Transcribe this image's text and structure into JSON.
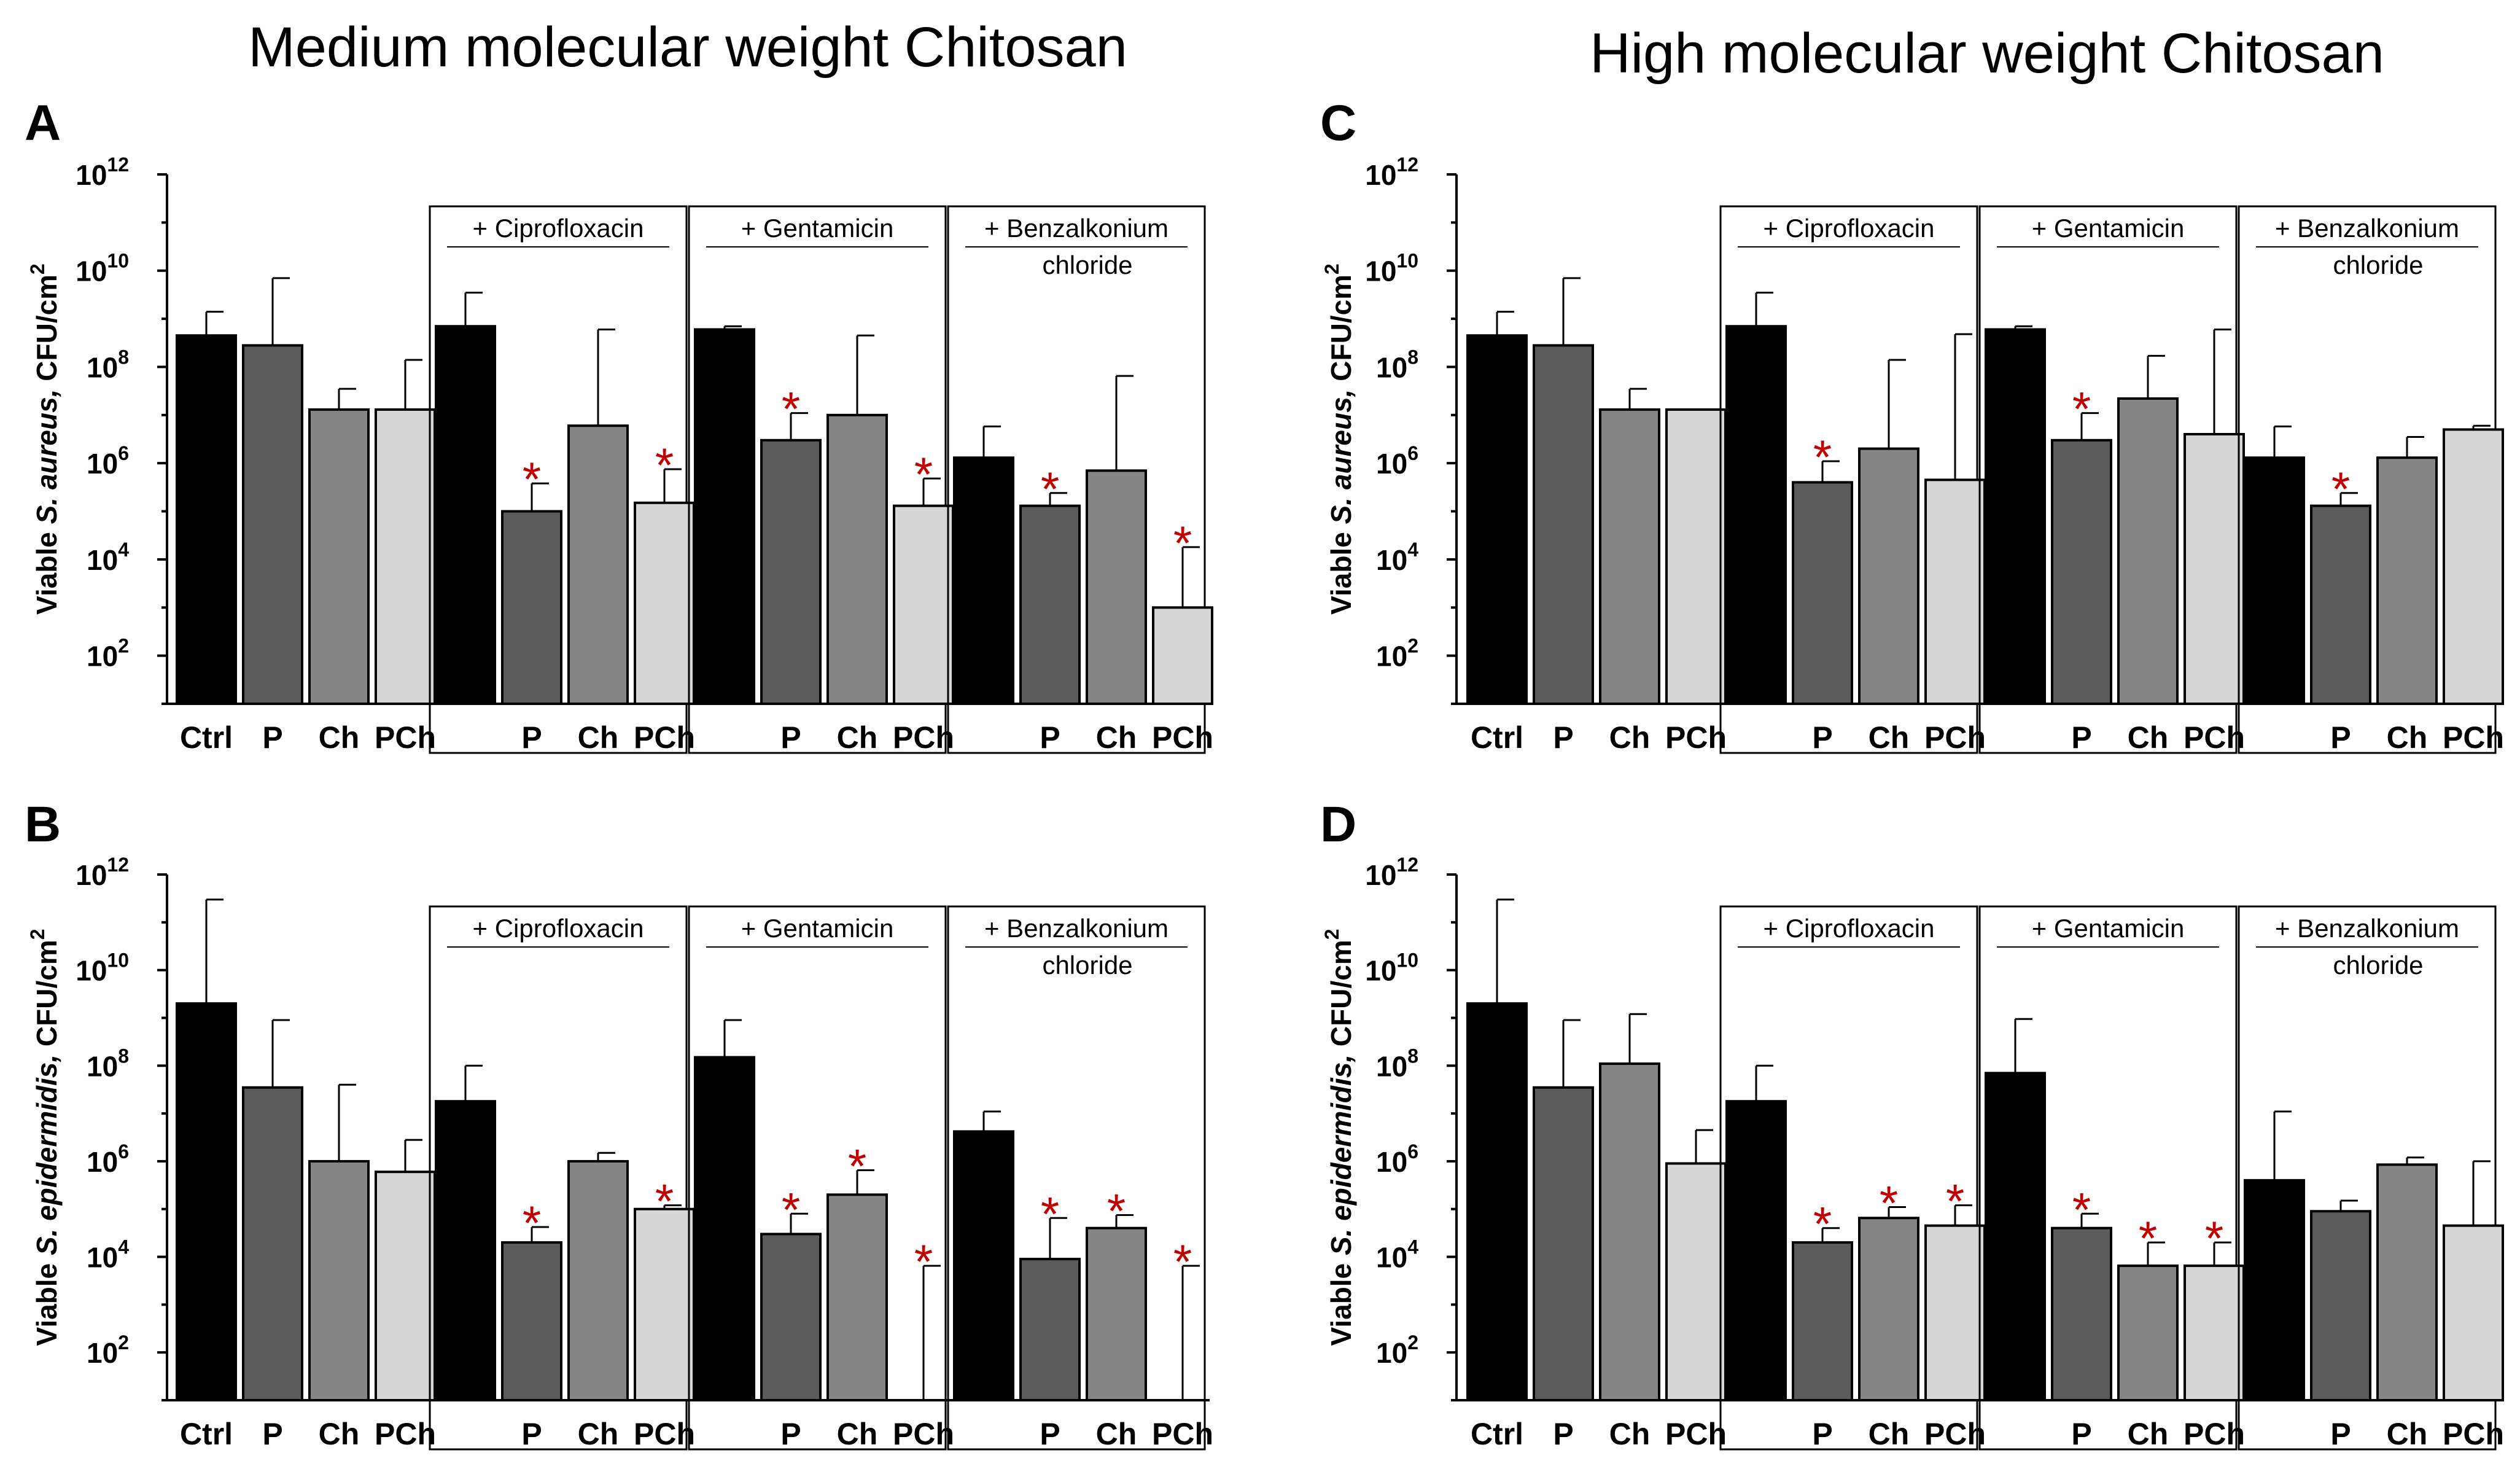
{
  "figure": {
    "left_title": "Medium molecular weight Chitosan",
    "right_title": "High molecular weight Chitosan"
  },
  "colors": {
    "Ctrl": "#000000",
    "P": "#5b5b5b",
    "Ch": "#858585",
    "PCh": "#d6d6d6",
    "significance": "#c00000"
  },
  "chart_data": [
    {
      "id": "A",
      "type": "bar",
      "scale": "log10",
      "ylim_exp": [
        1,
        12
      ],
      "ytick_exponents": [
        2,
        4,
        6,
        8,
        10,
        12
      ],
      "ylabel_pre": "Viable ",
      "ylabel_species": "S. aureus,",
      "ylabel_post": " CFU/cm",
      "ylabel_sup": "2",
      "groups": [
        {
          "label": "",
          "categories": [
            "Ctrl",
            "P",
            "Ch",
            "PCh"
          ],
          "values": [
            450000000.0,
            280000000.0,
            13000000.0,
            13000000.0
          ],
          "errors": [
            1400000000.0,
            7000000000.0,
            35000000.0,
            140000000.0
          ],
          "significant": [
            false,
            false,
            false,
            false
          ]
        },
        {
          "label": "+ Ciprofloxacin",
          "categories": [
            "",
            "P",
            "Ch",
            "PCh"
          ],
          "values": [
            700000000.0,
            100000.0,
            6000000.0,
            150000.0
          ],
          "errors": [
            3500000000.0,
            380000.0,
            600000000.0,
            750000.0
          ],
          "significant": [
            false,
            true,
            false,
            true
          ]
        },
        {
          "label": "+ Gentamicin",
          "categories": [
            "",
            "P",
            "Ch",
            "PCh"
          ],
          "values": [
            600000000.0,
            3000000.0,
            10000000.0,
            130000.0
          ],
          "errors": [
            700000000.0,
            11000000.0,
            450000000.0,
            480000.0
          ],
          "significant": [
            false,
            true,
            false,
            true
          ]
        },
        {
          "label": "+ Benzalkonium",
          "label2": "chloride",
          "categories": [
            "",
            "P",
            "Ch",
            "PCh"
          ],
          "values": [
            1300000.0,
            130000.0,
            700000.0,
            1000.0
          ],
          "errors": [
            5800000.0,
            240000.0,
            65000000.0,
            18000.0
          ],
          "significant": [
            false,
            true,
            false,
            true
          ]
        }
      ]
    },
    {
      "id": "B",
      "type": "bar",
      "scale": "log10",
      "ylim_exp": [
        1,
        12
      ],
      "ytick_exponents": [
        2,
        4,
        6,
        8,
        10,
        12
      ],
      "ylabel_pre": "Viable ",
      "ylabel_species": "S. epidermidis,",
      "ylabel_post": " CFU/cm",
      "ylabel_sup": "2",
      "groups": [
        {
          "label": "",
          "categories": [
            "Ctrl",
            "P",
            "Ch",
            "PCh"
          ],
          "values": [
            2000000000.0,
            35000000.0,
            1000000.0,
            600000.0
          ],
          "errors": [
            300000000000.0,
            900000000.0,
            40000000.0,
            2800000.0
          ],
          "significant": [
            false,
            false,
            false,
            false
          ]
        },
        {
          "label": "+ Ciprofloxacin",
          "categories": [
            "",
            "P",
            "Ch",
            "PCh"
          ],
          "values": [
            18000000.0,
            20000.0,
            1000000.0,
            100000.0
          ],
          "errors": [
            100000000.0,
            42000.0,
            1500000.0,
            120000.0
          ],
          "significant": [
            false,
            true,
            false,
            true
          ]
        },
        {
          "label": "+ Gentamicin",
          "categories": [
            "",
            "P",
            "Ch",
            "PCh"
          ],
          "values": [
            150000000.0,
            30000.0,
            200000.0,
            0
          ],
          "errors": [
            900000000.0,
            80000.0,
            650000.0,
            6500.0
          ],
          "significant": [
            false,
            true,
            true,
            true
          ]
        },
        {
          "label": "+ Benzalkonium",
          "label2": "chloride",
          "categories": [
            "",
            "P",
            "Ch",
            "PCh"
          ],
          "values": [
            4200000.0,
            9000.0,
            40000.0,
            0
          ],
          "errors": [
            11000000.0,
            65000.0,
            75000.0,
            6500.0
          ],
          "significant": [
            false,
            true,
            true,
            true
          ]
        }
      ]
    },
    {
      "id": "C",
      "type": "bar",
      "scale": "log10",
      "ylim_exp": [
        1,
        12
      ],
      "ytick_exponents": [
        2,
        4,
        6,
        8,
        10,
        12
      ],
      "ylabel_pre": "Viable ",
      "ylabel_species": "S. aureus,",
      "ylabel_post": " CFU/cm",
      "ylabel_sup": "2",
      "groups": [
        {
          "label": "",
          "categories": [
            "Ctrl",
            "P",
            "Ch",
            "PCh"
          ],
          "values": [
            450000000.0,
            280000000.0,
            13000000.0,
            13000000.0
          ],
          "errors": [
            1400000000.0,
            7000000000.0,
            35000000.0,
            13000000.0
          ],
          "significant": [
            false,
            false,
            false,
            false
          ]
        },
        {
          "label": "+ Ciprofloxacin",
          "categories": [
            "",
            "P",
            "Ch",
            "PCh"
          ],
          "values": [
            700000000.0,
            400000.0,
            2000000.0,
            450000.0
          ],
          "errors": [
            3500000000.0,
            1100000.0,
            140000000.0,
            480000000.0
          ],
          "significant": [
            false,
            true,
            false,
            false
          ]
        },
        {
          "label": "+ Gentamicin",
          "categories": [
            "",
            "P",
            "Ch",
            "PCh"
          ],
          "values": [
            600000000.0,
            3000000.0,
            22000000.0,
            4000000.0
          ],
          "errors": [
            700000000.0,
            11000000.0,
            170000000.0,
            600000000.0
          ],
          "significant": [
            false,
            true,
            false,
            false
          ]
        },
        {
          "label": "+ Benzalkonium",
          "label2": "chloride",
          "categories": [
            "",
            "P",
            "Ch",
            "PCh"
          ],
          "values": [
            1300000.0,
            130000.0,
            1300000.0,
            5000000.0
          ],
          "errors": [
            5800000.0,
            240000.0,
            3500000.0,
            6000000.0
          ],
          "significant": [
            false,
            true,
            false,
            false
          ]
        }
      ]
    },
    {
      "id": "D",
      "type": "bar",
      "scale": "log10",
      "ylim_exp": [
        1,
        12
      ],
      "ytick_exponents": [
        2,
        4,
        6,
        8,
        10,
        12
      ],
      "ylabel_pre": "Viable ",
      "ylabel_species": "S. epidermidis,",
      "ylabel_post": " CFU/cm",
      "ylabel_sup": "2",
      "groups": [
        {
          "label": "",
          "categories": [
            "Ctrl",
            "P",
            "Ch",
            "PCh"
          ],
          "values": [
            2000000000.0,
            35000000.0,
            110000000.0,
            900000.0
          ],
          "errors": [
            300000000000.0,
            900000000.0,
            1200000000.0,
            4500000.0
          ],
          "significant": [
            false,
            false,
            false,
            false
          ]
        },
        {
          "label": "+ Ciprofloxacin",
          "categories": [
            "",
            "P",
            "Ch",
            "PCh"
          ],
          "values": [
            18000000.0,
            20000.0,
            65000.0,
            45000.0
          ],
          "errors": [
            100000000.0,
            40000.0,
            110000.0,
            120000.0
          ],
          "significant": [
            false,
            true,
            true,
            true
          ]
        },
        {
          "label": "+ Gentamicin",
          "categories": [
            "",
            "P",
            "Ch",
            "PCh"
          ],
          "values": [
            70000000.0,
            40000.0,
            6500.0,
            6500.0
          ],
          "errors": [
            950000000.0,
            80000.0,
            20000.0,
            20000.0
          ],
          "significant": [
            false,
            true,
            true,
            true
          ]
        },
        {
          "label": "+ Benzalkonium",
          "label2": "chloride",
          "categories": [
            "",
            "P",
            "Ch",
            "PCh"
          ],
          "values": [
            400000.0,
            90000.0,
            850000.0,
            45000.0
          ],
          "errors": [
            11000000.0,
            150000.0,
            1200000.0,
            1000000.0
          ],
          "significant": [
            false,
            false,
            false,
            false
          ]
        }
      ]
    }
  ]
}
